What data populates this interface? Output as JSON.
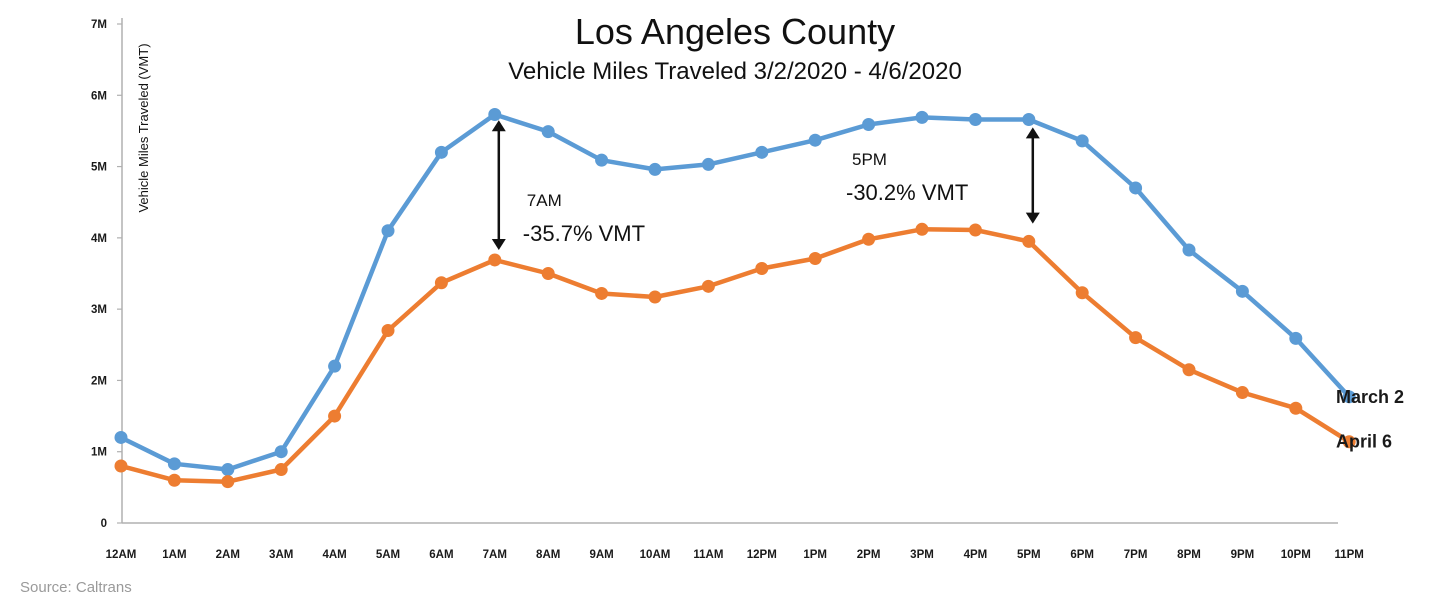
{
  "chart_data": {
    "type": "line",
    "title": "Los Angeles County",
    "subtitle": "Vehicle Miles Traveled 3/2/2020 - 4/6/2020",
    "ylabel": "Vehicle Miles Traveled (VMT)",
    "xlabel": "",
    "ylim": [
      0,
      7000000
    ],
    "ytick_values": [
      0,
      1000000,
      2000000,
      3000000,
      4000000,
      5000000,
      6000000,
      7000000
    ],
    "ytick_labels": [
      "0",
      "1M",
      "2M",
      "3M",
      "4M",
      "5M",
      "6M",
      "7M"
    ],
    "categories": [
      "12AM",
      "1AM",
      "2AM",
      "3AM",
      "4AM",
      "5AM",
      "6AM",
      "7AM",
      "8AM",
      "9AM",
      "10AM",
      "11AM",
      "12PM",
      "1PM",
      "2PM",
      "3PM",
      "4PM",
      "5PM",
      "6PM",
      "7PM",
      "8PM",
      "9PM",
      "10PM",
      "11PM"
    ],
    "series": [
      {
        "name": "March 2",
        "color": "#5b9bd5",
        "values": [
          1200000,
          830000,
          750000,
          1000000,
          2200000,
          4100000,
          5200000,
          5730000,
          5490000,
          5090000,
          4960000,
          5030000,
          5200000,
          5370000,
          5590000,
          5690000,
          5660000,
          5660000,
          5360000,
          4700000,
          3830000,
          3250000,
          2590000,
          1770000
        ]
      },
      {
        "name": "April 6",
        "color": "#ed7d31",
        "values": [
          800000,
          600000,
          580000,
          750000,
          1500000,
          2700000,
          3370000,
          3690000,
          3500000,
          3220000,
          3170000,
          3320000,
          3570000,
          3710000,
          3980000,
          4120000,
          4110000,
          3950000,
          3230000,
          2600000,
          2150000,
          1830000,
          1610000,
          1140000
        ]
      }
    ],
    "annotations": [
      {
        "category_index": 7,
        "y_top": 5650000,
        "y_bottom": 3830000,
        "label_small": "7AM",
        "label_big": "-35.7% VMT"
      },
      {
        "category_index": 17,
        "y_top": 5550000,
        "y_bottom": 4200000,
        "label_small": "5PM",
        "label_big": "-30.2% VMT"
      }
    ],
    "source": "Source: Caltrans",
    "grid": false
  }
}
